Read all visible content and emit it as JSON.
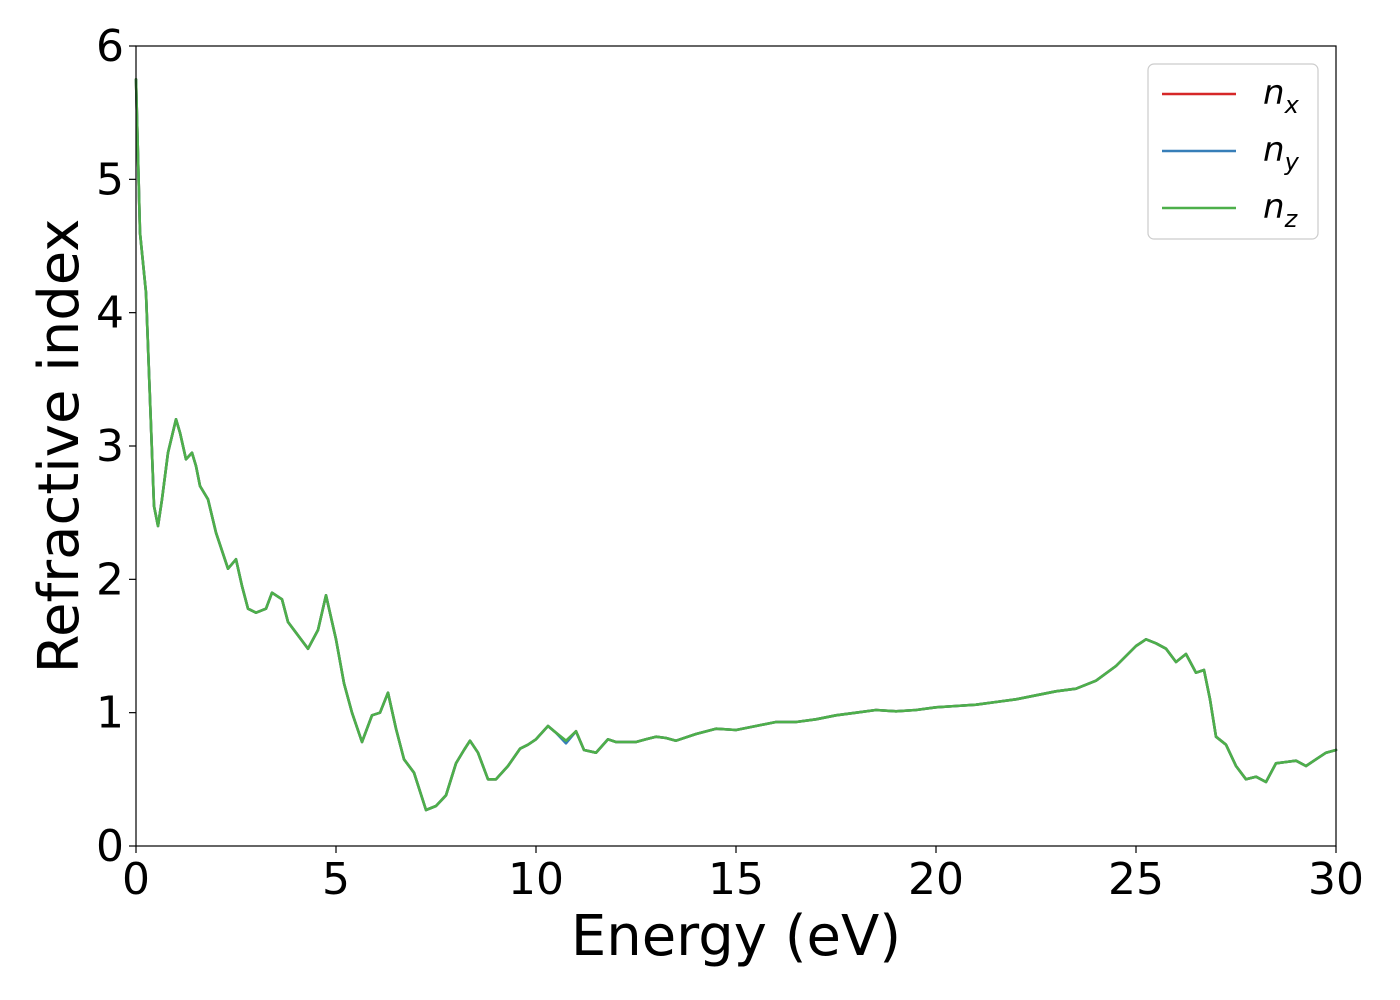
{
  "chart_data": {
    "type": "line",
    "title": "",
    "xlabel": "Energy (eV)",
    "ylabel": "Refractive index",
    "xlim": [
      0,
      30
    ],
    "ylim": [
      0,
      6
    ],
    "xticks": [
      0,
      5,
      10,
      15,
      20,
      25,
      30
    ],
    "yticks": [
      0,
      1,
      2,
      3,
      4,
      5,
      6
    ],
    "grid": false,
    "legend_position": "top-right",
    "series": [
      {
        "name": "n_x",
        "legend_base": "n",
        "legend_sub": "x",
        "color": "#d62728",
        "x": [
          0,
          0.1,
          0.25,
          0.45,
          0.55,
          0.65,
          0.8,
          1.0,
          1.1,
          1.25,
          1.4,
          1.5,
          1.6,
          1.8,
          2.0,
          2.3,
          2.5,
          2.65,
          2.8,
          3.0,
          3.25,
          3.4,
          3.65,
          3.8,
          4.0,
          4.3,
          4.55,
          4.75,
          5.0,
          5.2,
          5.4,
          5.65,
          5.9,
          6.1,
          6.3,
          6.5,
          6.7,
          6.95,
          7.25,
          7.5,
          7.75,
          8.0,
          8.2,
          8.35,
          8.55,
          8.8,
          9.0,
          9.3,
          9.6,
          9.8,
          10.0,
          10.3,
          10.5,
          10.75,
          11.0,
          11.2,
          11.5,
          11.8,
          12.0,
          12.25,
          12.5,
          12.75,
          13.0,
          13.25,
          13.5,
          14.0,
          14.5,
          15.0,
          15.5,
          16.0,
          16.5,
          17.0,
          17.5,
          18.0,
          18.5,
          19.0,
          19.5,
          20.0,
          20.5,
          21.0,
          21.5,
          22.0,
          22.5,
          23.0,
          23.5,
          24.0,
          24.5,
          25.0,
          25.25,
          25.5,
          25.75,
          26.0,
          26.25,
          26.5,
          26.7,
          26.85,
          27.0,
          27.25,
          27.5,
          27.75,
          28.0,
          28.25,
          28.5,
          28.75,
          29.0,
          29.25,
          29.5,
          29.75,
          30.0
        ],
        "y": [
          5.75,
          4.6,
          4.15,
          2.55,
          2.4,
          2.6,
          2.95,
          3.2,
          3.1,
          2.9,
          2.95,
          2.85,
          2.7,
          2.6,
          2.35,
          2.08,
          2.15,
          1.95,
          1.78,
          1.75,
          1.78,
          1.9,
          1.85,
          1.68,
          1.6,
          1.48,
          1.62,
          1.88,
          1.55,
          1.22,
          1.0,
          0.78,
          0.98,
          1.0,
          1.15,
          0.88,
          0.65,
          0.55,
          0.27,
          0.3,
          0.38,
          0.62,
          0.72,
          0.79,
          0.7,
          0.5,
          0.5,
          0.6,
          0.73,
          0.76,
          0.8,
          0.9,
          0.85,
          0.78,
          0.86,
          0.72,
          0.7,
          0.8,
          0.78,
          0.78,
          0.78,
          0.8,
          0.82,
          0.81,
          0.79,
          0.84,
          0.88,
          0.87,
          0.9,
          0.93,
          0.93,
          0.95,
          0.98,
          1.0,
          1.02,
          1.01,
          1.02,
          1.04,
          1.05,
          1.06,
          1.08,
          1.1,
          1.13,
          1.16,
          1.18,
          1.24,
          1.35,
          1.5,
          1.55,
          1.52,
          1.48,
          1.38,
          1.44,
          1.3,
          1.32,
          1.1,
          0.82,
          0.76,
          0.6,
          0.5,
          0.52,
          0.48,
          0.62,
          0.63,
          0.64,
          0.6,
          0.65,
          0.7,
          0.72
        ]
      },
      {
        "name": "n_y",
        "legend_base": "n",
        "legend_sub": "y",
        "color": "#377eb8",
        "x": [
          0,
          0.1,
          0.25,
          0.45,
          0.55,
          0.65,
          0.8,
          1.0,
          1.1,
          1.25,
          1.4,
          1.5,
          1.6,
          1.8,
          2.0,
          2.3,
          2.5,
          2.65,
          2.8,
          3.0,
          3.25,
          3.4,
          3.65,
          3.8,
          4.0,
          4.3,
          4.55,
          4.75,
          5.0,
          5.2,
          5.4,
          5.65,
          5.9,
          6.1,
          6.3,
          6.5,
          6.7,
          6.95,
          7.25,
          7.5,
          7.75,
          8.0,
          8.2,
          8.35,
          8.55,
          8.8,
          9.0,
          9.3,
          9.6,
          9.8,
          10.0,
          10.3,
          10.5,
          10.75,
          11.0,
          11.2,
          11.5,
          11.8,
          12.0,
          12.25,
          12.5,
          12.75,
          13.0,
          13.25,
          13.5,
          14.0,
          14.5,
          15.0,
          15.5,
          16.0,
          16.5,
          17.0,
          17.5,
          18.0,
          18.5,
          19.0,
          19.5,
          20.0,
          20.5,
          21.0,
          21.5,
          22.0,
          22.5,
          23.0,
          23.5,
          24.0,
          24.5,
          25.0,
          25.25,
          25.5,
          25.75,
          26.0,
          26.25,
          26.5,
          26.7,
          26.85,
          27.0,
          27.25,
          27.5,
          27.75,
          28.0,
          28.25,
          28.5,
          28.75,
          29.0,
          29.25,
          29.5,
          29.75,
          30.0
        ],
        "y": [
          5.75,
          4.6,
          4.15,
          2.55,
          2.4,
          2.6,
          2.95,
          3.2,
          3.1,
          2.9,
          2.95,
          2.85,
          2.7,
          2.6,
          2.35,
          2.08,
          2.15,
          1.95,
          1.78,
          1.75,
          1.78,
          1.9,
          1.85,
          1.68,
          1.6,
          1.48,
          1.62,
          1.88,
          1.55,
          1.22,
          1.0,
          0.78,
          0.98,
          1.0,
          1.15,
          0.88,
          0.65,
          0.55,
          0.27,
          0.3,
          0.38,
          0.62,
          0.72,
          0.79,
          0.7,
          0.5,
          0.5,
          0.6,
          0.73,
          0.76,
          0.8,
          0.9,
          0.85,
          0.77,
          0.86,
          0.72,
          0.7,
          0.8,
          0.78,
          0.78,
          0.78,
          0.8,
          0.82,
          0.81,
          0.79,
          0.84,
          0.88,
          0.87,
          0.9,
          0.93,
          0.93,
          0.95,
          0.98,
          1.0,
          1.02,
          1.01,
          1.02,
          1.04,
          1.05,
          1.06,
          1.08,
          1.1,
          1.13,
          1.16,
          1.18,
          1.24,
          1.35,
          1.5,
          1.55,
          1.52,
          1.48,
          1.38,
          1.44,
          1.3,
          1.32,
          1.1,
          0.82,
          0.76,
          0.6,
          0.5,
          0.52,
          0.48,
          0.62,
          0.63,
          0.64,
          0.6,
          0.65,
          0.7,
          0.72
        ]
      },
      {
        "name": "n_z",
        "legend_base": "n",
        "legend_sub": "z",
        "color": "#4daf4a",
        "x": [
          0,
          0.1,
          0.25,
          0.45,
          0.55,
          0.65,
          0.8,
          1.0,
          1.1,
          1.25,
          1.4,
          1.5,
          1.6,
          1.8,
          2.0,
          2.3,
          2.5,
          2.65,
          2.8,
          3.0,
          3.25,
          3.4,
          3.65,
          3.8,
          4.0,
          4.3,
          4.55,
          4.75,
          5.0,
          5.2,
          5.4,
          5.65,
          5.9,
          6.1,
          6.3,
          6.5,
          6.7,
          6.95,
          7.25,
          7.5,
          7.75,
          8.0,
          8.2,
          8.35,
          8.55,
          8.8,
          9.0,
          9.3,
          9.6,
          9.8,
          10.0,
          10.3,
          10.5,
          10.75,
          11.0,
          11.2,
          11.5,
          11.8,
          12.0,
          12.25,
          12.5,
          12.75,
          13.0,
          13.25,
          13.5,
          14.0,
          14.5,
          15.0,
          15.5,
          16.0,
          16.5,
          17.0,
          17.5,
          18.0,
          18.5,
          19.0,
          19.5,
          20.0,
          20.5,
          21.0,
          21.5,
          22.0,
          22.5,
          23.0,
          23.5,
          24.0,
          24.5,
          25.0,
          25.25,
          25.5,
          25.75,
          26.0,
          26.25,
          26.5,
          26.7,
          26.85,
          27.0,
          27.25,
          27.5,
          27.75,
          28.0,
          28.25,
          28.5,
          28.75,
          29.0,
          29.25,
          29.5,
          29.75,
          30.0
        ],
        "y": [
          5.75,
          4.6,
          4.15,
          2.55,
          2.4,
          2.6,
          2.95,
          3.2,
          3.1,
          2.9,
          2.95,
          2.85,
          2.7,
          2.6,
          2.35,
          2.08,
          2.15,
          1.95,
          1.78,
          1.75,
          1.78,
          1.9,
          1.85,
          1.68,
          1.6,
          1.48,
          1.62,
          1.88,
          1.55,
          1.22,
          1.0,
          0.78,
          0.98,
          1.0,
          1.15,
          0.88,
          0.65,
          0.55,
          0.27,
          0.3,
          0.38,
          0.62,
          0.72,
          0.79,
          0.7,
          0.5,
          0.5,
          0.6,
          0.73,
          0.76,
          0.8,
          0.9,
          0.85,
          0.79,
          0.86,
          0.72,
          0.7,
          0.8,
          0.78,
          0.78,
          0.78,
          0.8,
          0.82,
          0.81,
          0.79,
          0.84,
          0.88,
          0.87,
          0.9,
          0.93,
          0.93,
          0.95,
          0.98,
          1.0,
          1.02,
          1.01,
          1.02,
          1.04,
          1.05,
          1.06,
          1.08,
          1.1,
          1.13,
          1.16,
          1.18,
          1.24,
          1.35,
          1.5,
          1.55,
          1.52,
          1.48,
          1.38,
          1.44,
          1.3,
          1.32,
          1.1,
          0.82,
          0.76,
          0.6,
          0.5,
          0.52,
          0.48,
          0.62,
          0.63,
          0.64,
          0.6,
          0.65,
          0.7,
          0.72
        ]
      }
    ]
  }
}
